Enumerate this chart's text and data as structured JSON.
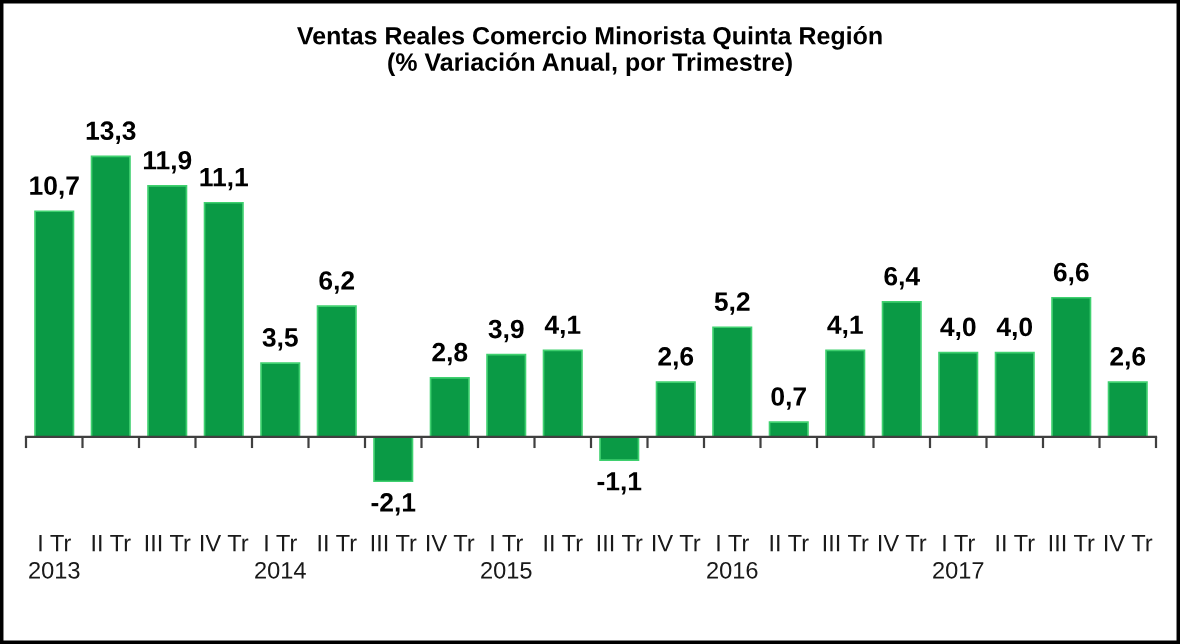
{
  "chart_data": {
    "type": "bar",
    "title": "Ventas Reales Comercio Minorista Quinta Región\n(% Variación Anual, por Trimestre)",
    "categories": [
      "I Tr\n2013",
      "II Tr",
      "III Tr",
      "IV Tr",
      "I Tr\n2014",
      "II Tr",
      "III Tr",
      "IV Tr",
      "I Tr\n2015",
      "II Tr",
      "III Tr",
      "IV Tr",
      "I Tr\n2016",
      "II Tr",
      "III Tr",
      "IV Tr",
      "I Tr\n2017",
      "II Tr",
      "III Tr",
      "IV Tr"
    ],
    "values": [
      10.7,
      13.3,
      11.9,
      11.1,
      3.5,
      6.2,
      -2.1,
      2.8,
      3.9,
      4.1,
      -1.1,
      2.6,
      5.2,
      0.7,
      4.1,
      6.4,
      4.0,
      4.0,
      6.6,
      2.6
    ],
    "value_labels": [
      "10,7",
      "13,3",
      "11,9",
      "11,1",
      "3,5",
      "6,2",
      "-2,1",
      "2,8",
      "3,9",
      "4,1",
      "-1,1",
      "2,6",
      "5,2",
      "0,7",
      "4,1",
      "6,4",
      "4,0",
      "4,0",
      "6,6",
      "2,6"
    ],
    "color": "#0a9a45"
  }
}
